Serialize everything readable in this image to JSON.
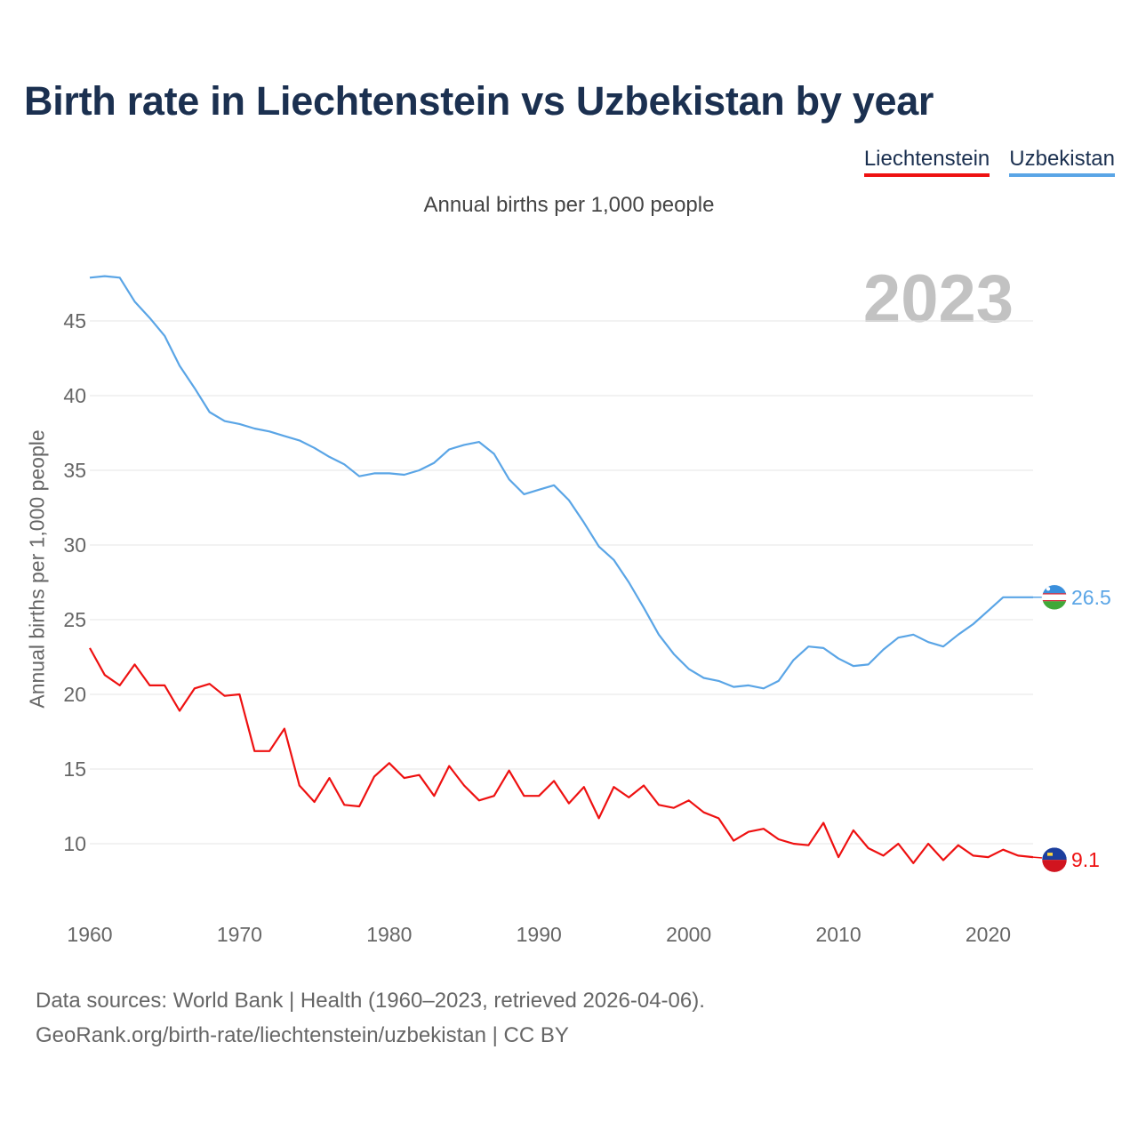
{
  "title": "Birth rate in Liechtenstein vs Uzbekistan by year",
  "subtitle": "Annual births per 1,000 people",
  "year_badge": "2023",
  "legend": [
    {
      "label": "Liechtenstein",
      "color": "#ee1111"
    },
    {
      "label": "Uzbekistan",
      "color": "#5aa5e6"
    }
  ],
  "footer": {
    "line1": "Data sources: World Bank | Health (1960–2023, retrieved 2026-04-06).",
    "line2": "GeoRank.org/birth-rate/liechtenstein/uzbekistan | CC BY"
  },
  "chart_data": {
    "type": "line",
    "title": "Birth rate in Liechtenstein vs Uzbekistan by year",
    "xlabel": "",
    "ylabel": "Annual births per 1,000 people",
    "x_ticks": [
      1960,
      1970,
      1980,
      1990,
      2000,
      2010,
      2020
    ],
    "y_ticks": [
      10,
      15,
      20,
      25,
      30,
      35,
      40,
      45
    ],
    "xlim": [
      1960,
      2023
    ],
    "ylim": [
      6,
      48
    ],
    "grid": true,
    "x": [
      1960,
      1961,
      1962,
      1963,
      1964,
      1965,
      1966,
      1967,
      1968,
      1969,
      1970,
      1971,
      1972,
      1973,
      1974,
      1975,
      1976,
      1977,
      1978,
      1979,
      1980,
      1981,
      1982,
      1983,
      1984,
      1985,
      1986,
      1987,
      1988,
      1989,
      1990,
      1991,
      1992,
      1993,
      1994,
      1995,
      1996,
      1997,
      1998,
      1999,
      2000,
      2001,
      2002,
      2003,
      2004,
      2005,
      2006,
      2007,
      2008,
      2009,
      2010,
      2011,
      2012,
      2013,
      2014,
      2015,
      2016,
      2017,
      2018,
      2019,
      2020,
      2021,
      2022,
      2023
    ],
    "series": [
      {
        "name": "Liechtenstein",
        "color": "#ee1111",
        "end_label": "9.1",
        "values": [
          23.1,
          21.3,
          20.6,
          22.0,
          20.6,
          20.6,
          18.9,
          20.4,
          20.7,
          19.9,
          20.0,
          16.2,
          16.2,
          17.7,
          13.9,
          12.8,
          14.4,
          12.6,
          12.5,
          14.5,
          15.4,
          14.4,
          14.6,
          13.2,
          15.2,
          13.9,
          12.9,
          13.2,
          14.9,
          13.2,
          13.2,
          14.2,
          12.7,
          13.8,
          11.7,
          13.8,
          13.1,
          13.9,
          12.6,
          12.4,
          12.9,
          12.1,
          11.7,
          10.2,
          10.8,
          11.0,
          10.3,
          10.0,
          9.9,
          11.4,
          9.1,
          10.9,
          9.7,
          9.2,
          10.0,
          8.7,
          10.0,
          8.9,
          9.9,
          9.2,
          9.1,
          9.6,
          9.2,
          9.1
        ]
      },
      {
        "name": "Uzbekistan",
        "color": "#5aa5e6",
        "end_label": "26.5",
        "values": [
          47.9,
          48.0,
          47.9,
          46.3,
          45.2,
          44.0,
          42.0,
          40.5,
          38.9,
          38.3,
          38.1,
          37.8,
          37.6,
          37.3,
          37.0,
          36.5,
          35.9,
          35.4,
          34.6,
          34.8,
          34.8,
          34.7,
          35.0,
          35.5,
          36.4,
          36.7,
          36.9,
          36.1,
          34.4,
          33.4,
          33.7,
          34.0,
          33.0,
          31.5,
          29.9,
          29.0,
          27.5,
          25.8,
          24.0,
          22.7,
          21.7,
          21.1,
          20.9,
          20.5,
          20.6,
          20.4,
          20.9,
          22.3,
          23.2,
          23.1,
          22.4,
          21.9,
          22.0,
          23.0,
          23.8,
          24.0,
          23.5,
          23.2,
          24.0,
          24.7,
          25.6,
          26.5,
          26.5,
          26.5
        ]
      }
    ]
  }
}
